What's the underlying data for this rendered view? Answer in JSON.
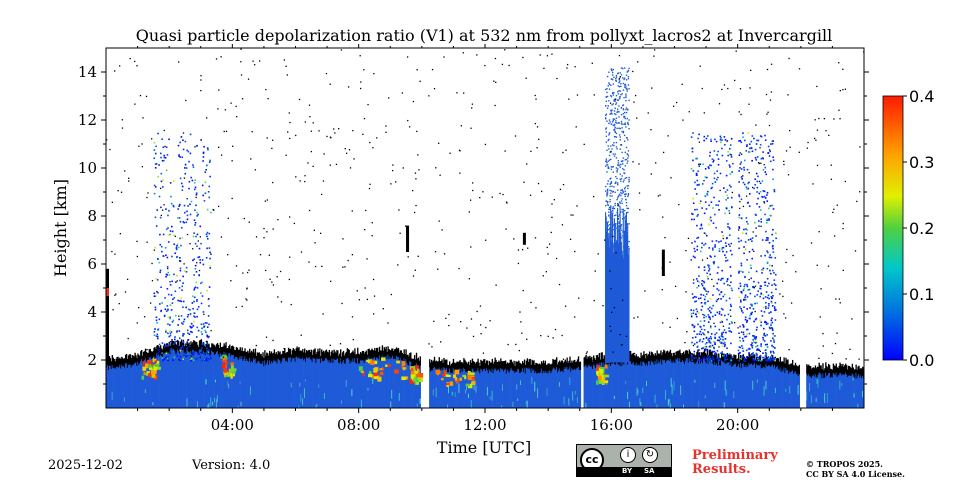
{
  "chart_data": {
    "type": "heatmap",
    "title": "Quasi particle depolarization ratio (V1) at 532 nm from pollyxt_lacros2 at Invercargill",
    "xlabel": "Time [UTC]",
    "ylabel": "Height [km]",
    "xlim": [
      0,
      24
    ],
    "ylim": [
      0,
      15
    ],
    "x_ticks": [
      {
        "value": 4,
        "label": "04:00"
      },
      {
        "value": 8,
        "label": "08:00"
      },
      {
        "value": 12,
        "label": "12:00"
      },
      {
        "value": 16,
        "label": "16:00"
      },
      {
        "value": 20,
        "label": "20:00"
      }
    ],
    "y_ticks": [
      {
        "value": 2,
        "label": "2"
      },
      {
        "value": 4,
        "label": "4"
      },
      {
        "value": 6,
        "label": "6"
      },
      {
        "value": 8,
        "label": "8"
      },
      {
        "value": 10,
        "label": "10"
      },
      {
        "value": 12,
        "label": "12"
      },
      {
        "value": 14,
        "label": "14"
      }
    ],
    "colorbar": {
      "range": [
        0,
        0.4
      ],
      "ticks": [
        "0.0",
        "0.1",
        "0.2",
        "0.3",
        "0.4"
      ],
      "colormap": "jet"
    },
    "approx_features": {
      "boundary_layer_top_km": [
        [
          0,
          1.7
        ],
        [
          1,
          1.9
        ],
        [
          2,
          2.4
        ],
        [
          3,
          2.4
        ],
        [
          4,
          2.2
        ],
        [
          5,
          1.9
        ],
        [
          6,
          2.1
        ],
        [
          7,
          2.0
        ],
        [
          8,
          2.0
        ],
        [
          9,
          2.2
        ],
        [
          10,
          1.7
        ],
        [
          11,
          1.6
        ],
        [
          12,
          1.6
        ],
        [
          13,
          1.6
        ],
        [
          14,
          1.6
        ],
        [
          15,
          1.7
        ],
        [
          16,
          1.9
        ],
        [
          17,
          1.9
        ],
        [
          18,
          2.0
        ],
        [
          19,
          2.0
        ],
        [
          20,
          1.8
        ],
        [
          21,
          1.8
        ],
        [
          22,
          1.4
        ],
        [
          23,
          1.4
        ],
        [
          24,
          1.4
        ]
      ],
      "data_gaps_utc": [
        [
          9.95,
          10.2
        ],
        [
          15.0,
          15.1
        ],
        [
          21.95,
          22.15
        ]
      ],
      "high_cloud_column_utc": [
        15.8,
        16.55
      ],
      "high_cloud_top_km": 14.2,
      "sparse_depol_plumes_utc": [
        [
          1.5,
          3.3
        ],
        [
          18.5,
          19.8
        ],
        [
          20.0,
          21.2
        ]
      ]
    }
  },
  "footer": {
    "date": "2025-12-02",
    "version": "Version: 4.0",
    "license_badge": {
      "by": "BY",
      "sa": "SA"
    },
    "preliminary_line1": "Preliminary",
    "preliminary_line2": "Results.",
    "copyright_line1": "© TROPOS 2025.",
    "copyright_line2": "CC BY SA 4.0 License."
  },
  "colors": {
    "aerosol_blue": "#1f5bd8",
    "cloud_black": "#000000",
    "accent_red": "#e8312d"
  }
}
